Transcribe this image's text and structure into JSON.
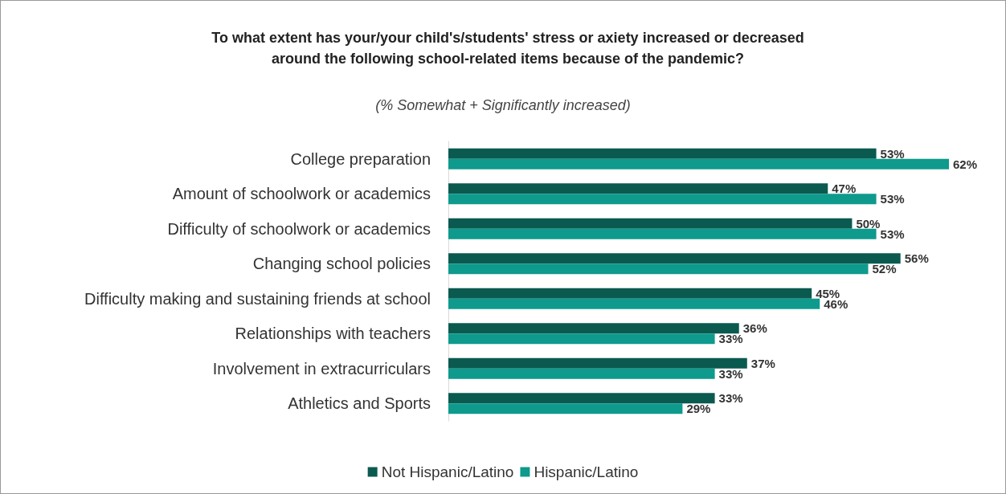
{
  "chart_data": {
    "type": "bar",
    "orientation": "horizontal",
    "title": "To what extent has your/your child's/students' stress or axiety increased or decreased\naround the following school-related items because of the pandemic?",
    "subtitle": "(% Somewhat + Significantly increased)",
    "categories": [
      "College preparation",
      "Amount of schoolwork or academics",
      "Difficulty of schoolwork or academics",
      "Changing school policies",
      "Difficulty making and sustaining friends at school",
      "Relationships with teachers",
      "Involvement in extracurriculars",
      "Athletics and Sports"
    ],
    "series": [
      {
        "name": "Not Hispanic/Latino",
        "color": "#0b5a50",
        "values": [
          53,
          47,
          50,
          56,
          45,
          36,
          37,
          33
        ],
        "value_labels": [
          "53%",
          "47%",
          "50%",
          "56%",
          "45%",
          "36%",
          "37%",
          "33%"
        ]
      },
      {
        "name": "Hispanic/Latino",
        "color": "#0e9a8c",
        "values": [
          62,
          53,
          53,
          52,
          46,
          33,
          33,
          29
        ],
        "value_labels": [
          "62%",
          "53%",
          "53%",
          "52%",
          "46%",
          "33%",
          "33%",
          "29%"
        ]
      }
    ],
    "legend": "bottom"
  }
}
